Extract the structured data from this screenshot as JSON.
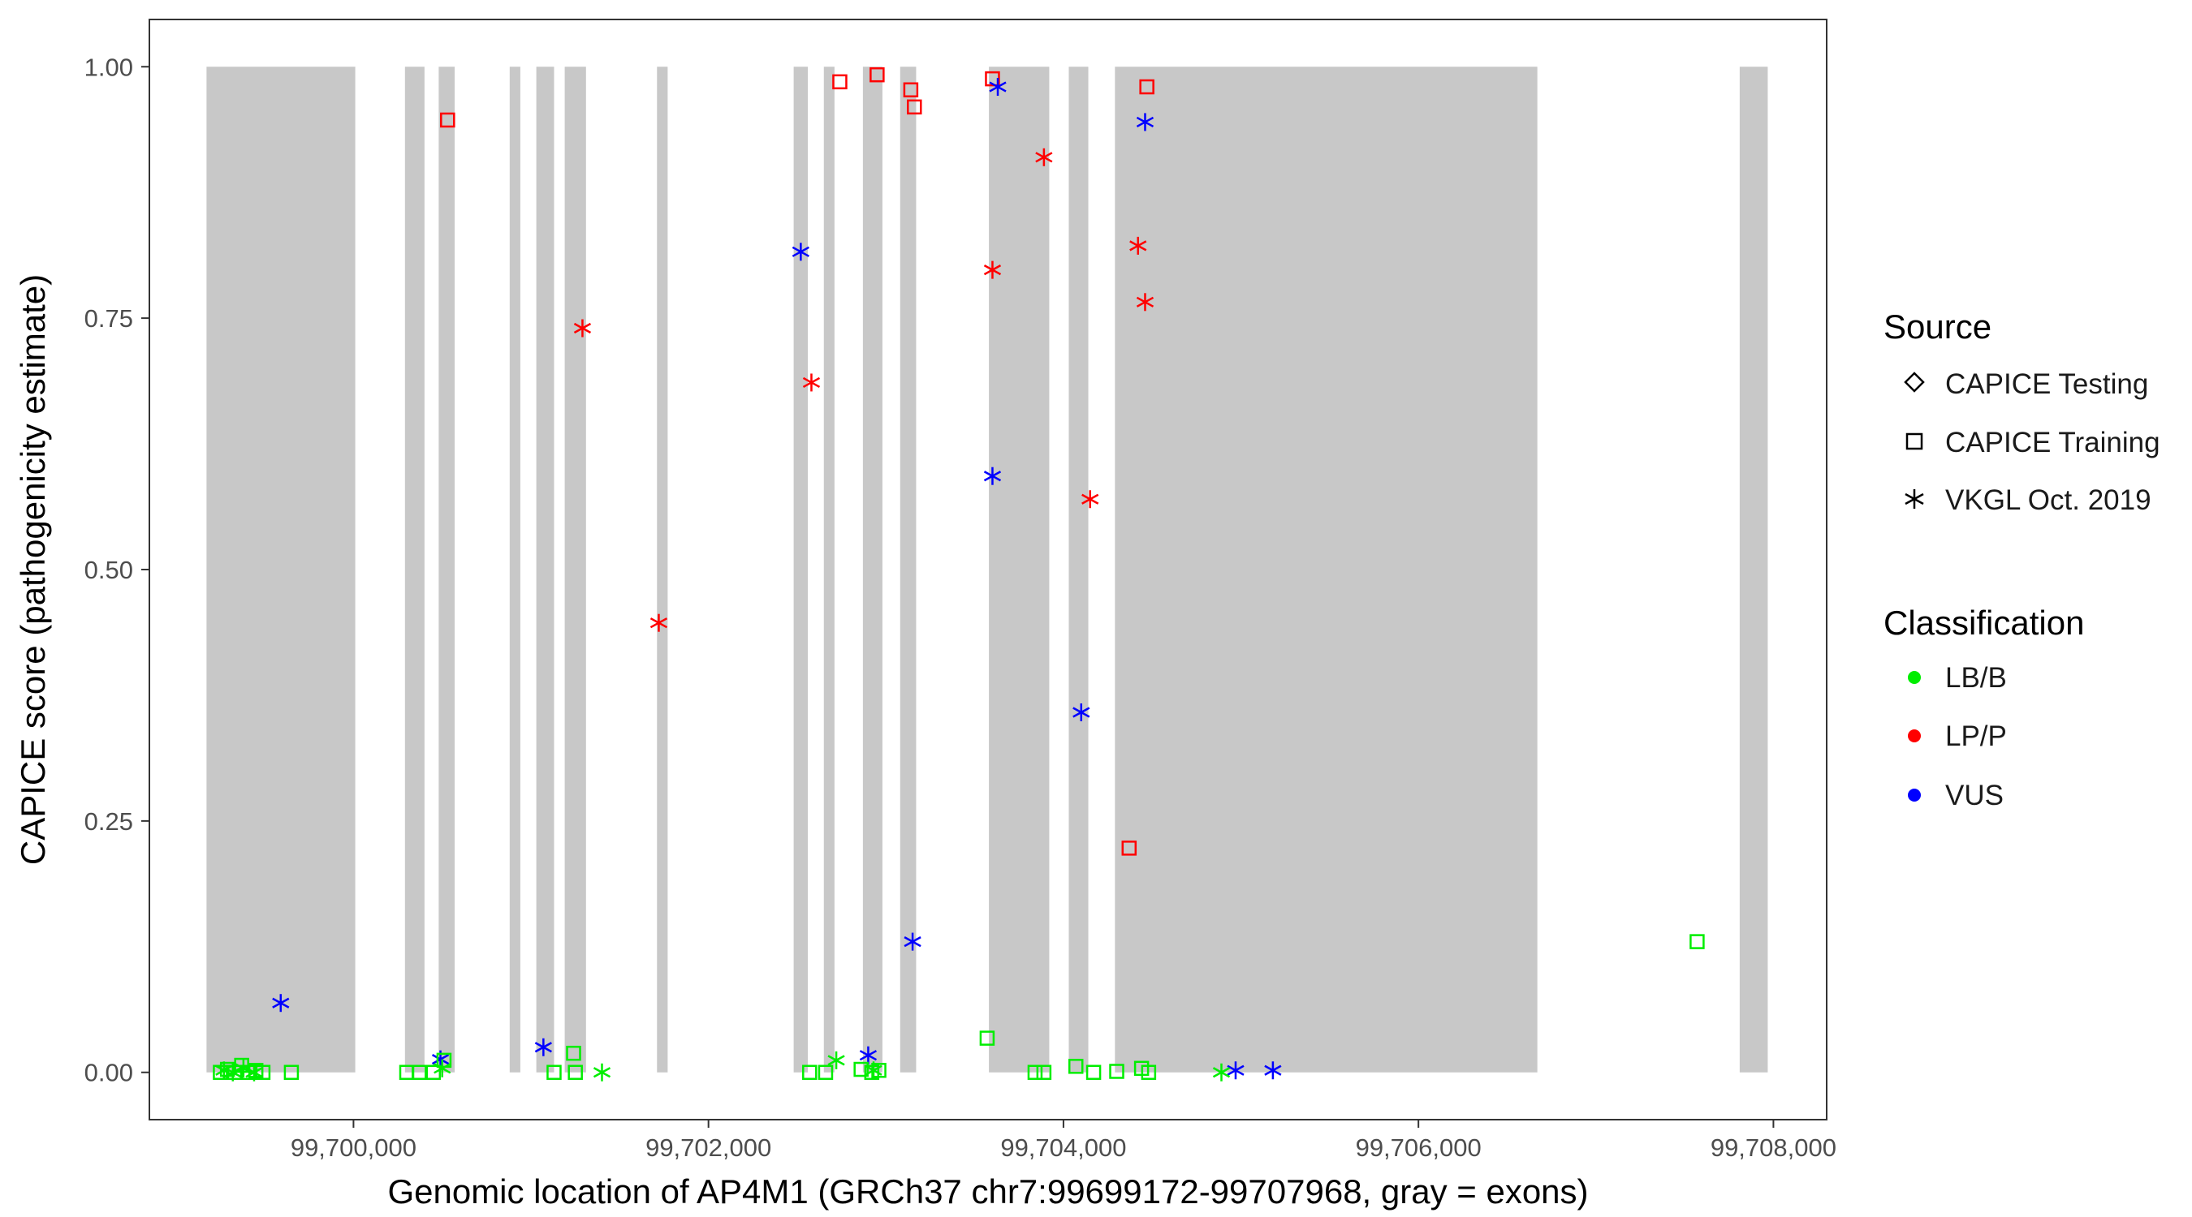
{
  "chart_data": {
    "type": "scatter",
    "xlabel": "Genomic location of AP4M1 (GRCh37 chr7:99699172-99707968, gray = exons)",
    "ylabel": "CAPICE score (pathogenicity estimate)",
    "xlim": [
      99698850,
      99708300
    ],
    "ylim": [
      -0.047,
      1.047
    ],
    "x_ticks": [
      99700000,
      99702000,
      99704000,
      99706000,
      99708000
    ],
    "x_tick_labels": [
      "99,700,000",
      "99,702,000",
      "99,704,000",
      "99,706,000",
      "99,708,000"
    ],
    "y_ticks": [
      0,
      0.25,
      0.5,
      0.75,
      1
    ],
    "y_tick_labels": [
      "0.00",
      "0.25",
      "0.50",
      "0.75",
      "1.00"
    ],
    "grid": false,
    "exons": [
      [
        99699172,
        99700010
      ],
      [
        99700290,
        99700400
      ],
      [
        99700480,
        99700570
      ],
      [
        99700880,
        99700940
      ],
      [
        99701030,
        99701130
      ],
      [
        99701190,
        99701310
      ],
      [
        99701710,
        99701770
      ],
      [
        99702480,
        99702560
      ],
      [
        99702650,
        99702710
      ],
      [
        99702870,
        99702980
      ],
      [
        99703080,
        99703170
      ],
      [
        99703580,
        99703920
      ],
      [
        99704030,
        99704140
      ],
      [
        99704290,
        99706670
      ],
      [
        99707810,
        99707968
      ]
    ],
    "legend": {
      "placement": "right",
      "source_title": "Source",
      "source_items": [
        {
          "label": "CAPICE Testing",
          "shape": "diamond"
        },
        {
          "label": "CAPICE Training",
          "shape": "square"
        },
        {
          "label": "VKGL Oct. 2019",
          "shape": "asterisk"
        }
      ],
      "class_title": "Classification",
      "class_items": [
        {
          "label": "LB/B",
          "color": "#00ee00"
        },
        {
          "label": "LP/P",
          "color": "#ff0000"
        },
        {
          "label": "VUS",
          "color": "#0000ff"
        }
      ]
    },
    "colors": {
      "LB/B": "#00ee00",
      "LP/P": "#ff0000",
      "VUS": "#0000ff",
      "exon": "#c8c8c8"
    },
    "points": [
      {
        "x": 99700530,
        "y": 0.947,
        "shape": "square",
        "cls": "LP/P"
      },
      {
        "x": 99702740,
        "y": 0.985,
        "shape": "square",
        "cls": "LP/P"
      },
      {
        "x": 99702950,
        "y": 0.992,
        "shape": "square",
        "cls": "LP/P"
      },
      {
        "x": 99703140,
        "y": 0.977,
        "shape": "square",
        "cls": "LP/P"
      },
      {
        "x": 99703160,
        "y": 0.96,
        "shape": "square",
        "cls": "LP/P"
      },
      {
        "x": 99703600,
        "y": 0.988,
        "shape": "square",
        "cls": "LP/P"
      },
      {
        "x": 99704470,
        "y": 0.98,
        "shape": "square",
        "cls": "LP/P"
      },
      {
        "x": 99704370,
        "y": 0.223,
        "shape": "square",
        "cls": "LP/P"
      },
      {
        "x": 99703890,
        "y": 0.91,
        "shape": "asterisk",
        "cls": "LP/P"
      },
      {
        "x": 99701290,
        "y": 0.74,
        "shape": "asterisk",
        "cls": "LP/P"
      },
      {
        "x": 99702580,
        "y": 0.686,
        "shape": "asterisk",
        "cls": "LP/P"
      },
      {
        "x": 99703600,
        "y": 0.798,
        "shape": "asterisk",
        "cls": "LP/P"
      },
      {
        "x": 99704420,
        "y": 0.822,
        "shape": "asterisk",
        "cls": "LP/P"
      },
      {
        "x": 99704460,
        "y": 0.766,
        "shape": "asterisk",
        "cls": "LP/P"
      },
      {
        "x": 99704150,
        "y": 0.57,
        "shape": "asterisk",
        "cls": "LP/P"
      },
      {
        "x": 99701720,
        "y": 0.447,
        "shape": "asterisk",
        "cls": "LP/P"
      },
      {
        "x": 99703630,
        "y": 0.98,
        "shape": "asterisk",
        "cls": "VUS"
      },
      {
        "x": 99704460,
        "y": 0.945,
        "shape": "asterisk",
        "cls": "VUS"
      },
      {
        "x": 99702520,
        "y": 0.816,
        "shape": "asterisk",
        "cls": "VUS"
      },
      {
        "x": 99703600,
        "y": 0.593,
        "shape": "asterisk",
        "cls": "VUS"
      },
      {
        "x": 99704100,
        "y": 0.358,
        "shape": "asterisk",
        "cls": "VUS"
      },
      {
        "x": 99703150,
        "y": 0.13,
        "shape": "asterisk",
        "cls": "VUS"
      },
      {
        "x": 99699590,
        "y": 0.069,
        "shape": "asterisk",
        "cls": "VUS"
      },
      {
        "x": 99700490,
        "y": 0.013,
        "shape": "asterisk",
        "cls": "VUS"
      },
      {
        "x": 99701070,
        "y": 0.025,
        "shape": "asterisk",
        "cls": "VUS"
      },
      {
        "x": 99702900,
        "y": 0.017,
        "shape": "asterisk",
        "cls": "VUS"
      },
      {
        "x": 99704970,
        "y": 0.002,
        "shape": "asterisk",
        "cls": "VUS"
      },
      {
        "x": 99705180,
        "y": 0.002,
        "shape": "asterisk",
        "cls": "VUS"
      },
      {
        "x": 99707570,
        "y": 0.13,
        "shape": "square",
        "cls": "LB/B"
      },
      {
        "x": 99703570,
        "y": 0.034,
        "shape": "square",
        "cls": "LB/B"
      },
      {
        "x": 99701240,
        "y": 0.019,
        "shape": "square",
        "cls": "LB/B"
      },
      {
        "x": 99700510,
        "y": 0.012,
        "shape": "square",
        "cls": "LB/B"
      },
      {
        "x": 99699250,
        "y": 0.0,
        "shape": "square",
        "cls": "LB/B"
      },
      {
        "x": 99699290,
        "y": 0.003,
        "shape": "square",
        "cls": "LB/B"
      },
      {
        "x": 99699330,
        "y": 0.0,
        "shape": "square",
        "cls": "LB/B"
      },
      {
        "x": 99699370,
        "y": 0.007,
        "shape": "square",
        "cls": "LB/B"
      },
      {
        "x": 99699410,
        "y": 0.0,
        "shape": "square",
        "cls": "LB/B"
      },
      {
        "x": 99699450,
        "y": 0.002,
        "shape": "square",
        "cls": "LB/B"
      },
      {
        "x": 99699490,
        "y": 0.0,
        "shape": "square",
        "cls": "LB/B"
      },
      {
        "x": 99699650,
        "y": 0.0,
        "shape": "square",
        "cls": "LB/B"
      },
      {
        "x": 99700300,
        "y": 0.0,
        "shape": "square",
        "cls": "LB/B"
      },
      {
        "x": 99700370,
        "y": 0.0,
        "shape": "square",
        "cls": "LB/B"
      },
      {
        "x": 99700450,
        "y": 0.0,
        "shape": "square",
        "cls": "LB/B"
      },
      {
        "x": 99701130,
        "y": 0.0,
        "shape": "square",
        "cls": "LB/B"
      },
      {
        "x": 99701250,
        "y": 0.0,
        "shape": "square",
        "cls": "LB/B"
      },
      {
        "x": 99702570,
        "y": 0.0,
        "shape": "square",
        "cls": "LB/B"
      },
      {
        "x": 99702660,
        "y": 0.0,
        "shape": "square",
        "cls": "LB/B"
      },
      {
        "x": 99702860,
        "y": 0.003,
        "shape": "square",
        "cls": "LB/B"
      },
      {
        "x": 99702920,
        "y": 0.0,
        "shape": "square",
        "cls": "LB/B"
      },
      {
        "x": 99702960,
        "y": 0.002,
        "shape": "square",
        "cls": "LB/B"
      },
      {
        "x": 99703840,
        "y": 0.0,
        "shape": "square",
        "cls": "LB/B"
      },
      {
        "x": 99703890,
        "y": 0.0,
        "shape": "square",
        "cls": "LB/B"
      },
      {
        "x": 99704070,
        "y": 0.006,
        "shape": "square",
        "cls": "LB/B"
      },
      {
        "x": 99704170,
        "y": 0.0,
        "shape": "square",
        "cls": "LB/B"
      },
      {
        "x": 99704300,
        "y": 0.001,
        "shape": "square",
        "cls": "LB/B"
      },
      {
        "x": 99704440,
        "y": 0.004,
        "shape": "square",
        "cls": "LB/B"
      },
      {
        "x": 99704480,
        "y": 0.0,
        "shape": "square",
        "cls": "LB/B"
      },
      {
        "x": 99699270,
        "y": 0.002,
        "shape": "asterisk",
        "cls": "LB/B"
      },
      {
        "x": 99699320,
        "y": 0.0,
        "shape": "asterisk",
        "cls": "LB/B"
      },
      {
        "x": 99699380,
        "y": 0.004,
        "shape": "asterisk",
        "cls": "LB/B"
      },
      {
        "x": 99699440,
        "y": 0.0,
        "shape": "asterisk",
        "cls": "LB/B"
      },
      {
        "x": 99700500,
        "y": 0.004,
        "shape": "asterisk",
        "cls": "LB/B"
      },
      {
        "x": 99701400,
        "y": 0.0,
        "shape": "asterisk",
        "cls": "LB/B"
      },
      {
        "x": 99702720,
        "y": 0.012,
        "shape": "asterisk",
        "cls": "LB/B"
      },
      {
        "x": 99702930,
        "y": 0.002,
        "shape": "asterisk",
        "cls": "LB/B"
      },
      {
        "x": 99704890,
        "y": 0.0,
        "shape": "asterisk",
        "cls": "LB/B"
      }
    ]
  }
}
